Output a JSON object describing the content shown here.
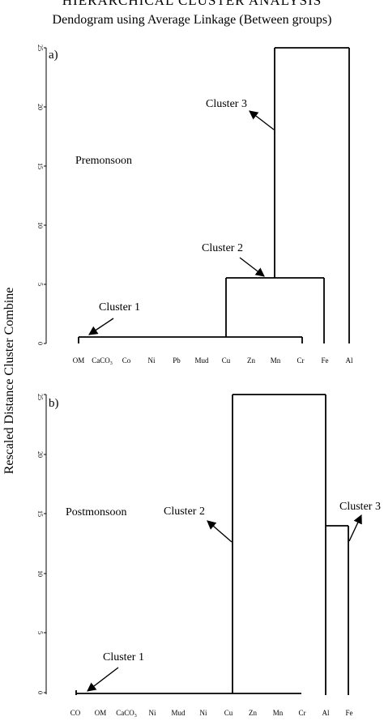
{
  "header": {
    "title": "HIERARCHICAL  CLUSTER  ANALYSIS",
    "subtitle": "Dendogram using Average Linkage (Between groups)",
    "ylabel": "Rescaled Distance Cluster Combine"
  },
  "panels": [
    {
      "label": "a)",
      "season": "Premonsoon",
      "yticks": [
        "0",
        "5",
        "10",
        "15",
        "20",
        "25"
      ],
      "xticks": [
        {
          "text": "OM"
        },
        {
          "text": "CaCO",
          "sub": "3"
        },
        {
          "text": "Co"
        },
        {
          "text": "Ni"
        },
        {
          "text": "Pb"
        },
        {
          "text": "Mud"
        },
        {
          "text": "Cu"
        },
        {
          "text": "Zn"
        },
        {
          "text": "Mn"
        },
        {
          "text": "Cr"
        },
        {
          "text": "Fe"
        },
        {
          "text": "Al"
        }
      ],
      "clusters": [
        "Cluster 1",
        "Cluster 2",
        "Cluster 3"
      ]
    },
    {
      "label": "b)",
      "season": "Postmonsoon",
      "yticks": [
        "0",
        "5",
        "10",
        "15",
        "20",
        "25"
      ],
      "xticks": [
        {
          "text": "CO"
        },
        {
          "text": "OM"
        },
        {
          "text": "CaCO",
          "sub": "3"
        },
        {
          "text": "Ni"
        },
        {
          "text": "Mud"
        },
        {
          "text": "Ni"
        },
        {
          "text": "Cu"
        },
        {
          "text": "Zn"
        },
        {
          "text": "Mn"
        },
        {
          "text": "Cr"
        },
        {
          "text": "Al"
        },
        {
          "text": "Fe"
        }
      ],
      "clusters": [
        "Cluster 1",
        "Cluster 2",
        "Cluster 3"
      ]
    }
  ]
}
